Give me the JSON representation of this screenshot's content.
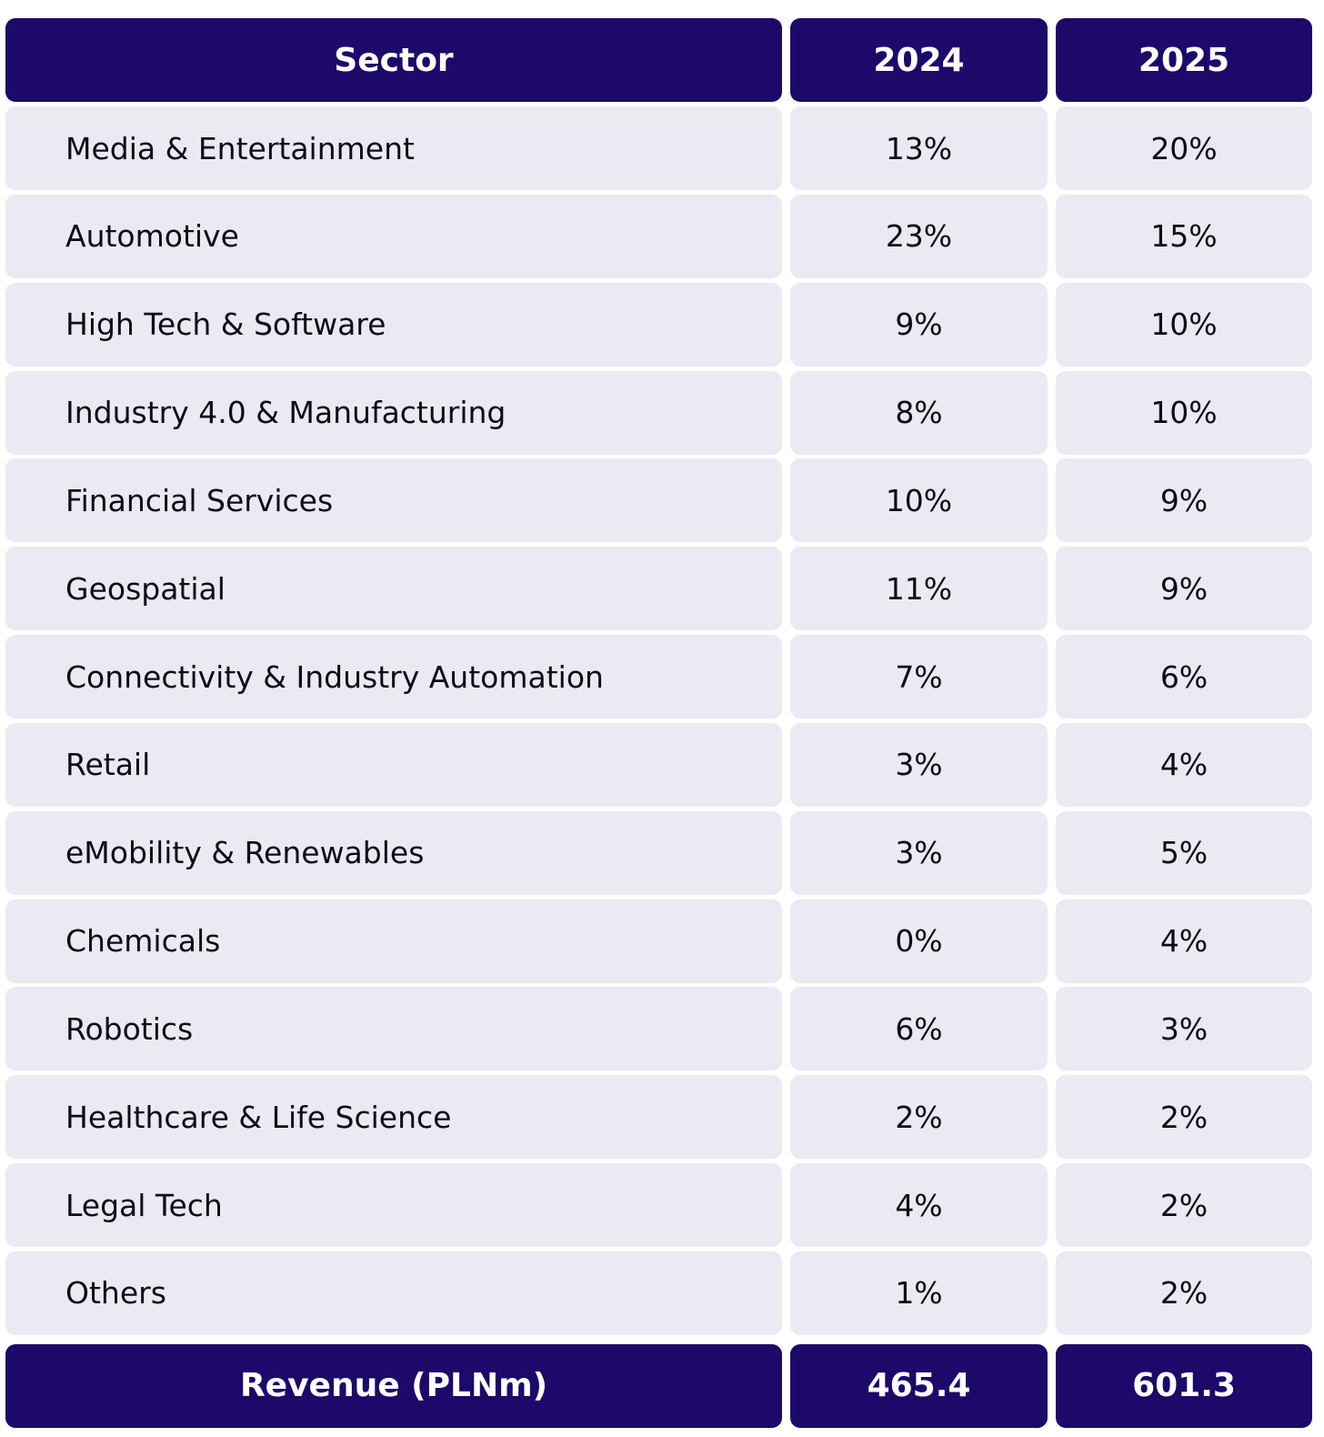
{
  "chart_data": {
    "type": "table",
    "columns": [
      "Sector",
      "2024",
      "2025"
    ],
    "rows": [
      {
        "sector": "Media & Entertainment",
        "y2024": "13%",
        "y2025": "20%"
      },
      {
        "sector": "Automotive",
        "y2024": "23%",
        "y2025": "15%"
      },
      {
        "sector": "High Tech & Software",
        "y2024": "9%",
        "y2025": "10%"
      },
      {
        "sector": "Industry 4.0 & Manufacturing",
        "y2024": "8%",
        "y2025": "10%"
      },
      {
        "sector": "Financial Services",
        "y2024": "10%",
        "y2025": "9%"
      },
      {
        "sector": "Geospatial",
        "y2024": "11%",
        "y2025": "9%"
      },
      {
        "sector": "Connectivity & Industry Automation",
        "y2024": "7%",
        "y2025": "6%"
      },
      {
        "sector": "Retail",
        "y2024": "3%",
        "y2025": "4%"
      },
      {
        "sector": "eMobility & Renewables",
        "y2024": "3%",
        "y2025": "5%"
      },
      {
        "sector": "Chemicals",
        "y2024": "0%",
        "y2025": "4%"
      },
      {
        "sector": "Robotics",
        "y2024": "6%",
        "y2025": "3%"
      },
      {
        "sector": "Healthcare & Life Science",
        "y2024": "2%",
        "y2025": "2%"
      },
      {
        "sector": "Legal Tech",
        "y2024": "4%",
        "y2025": "2%"
      },
      {
        "sector": "Others",
        "y2024": "1%",
        "y2025": "2%"
      }
    ],
    "footer": {
      "label": "Revenue (PLNm)",
      "y2024": "465.4",
      "y2025": "601.3"
    }
  },
  "colors": {
    "header_bg": "#1c096a",
    "header_text": "#ffffff",
    "cell_bg": "#ebe9f2",
    "cell_text": "#0e0b1a"
  }
}
